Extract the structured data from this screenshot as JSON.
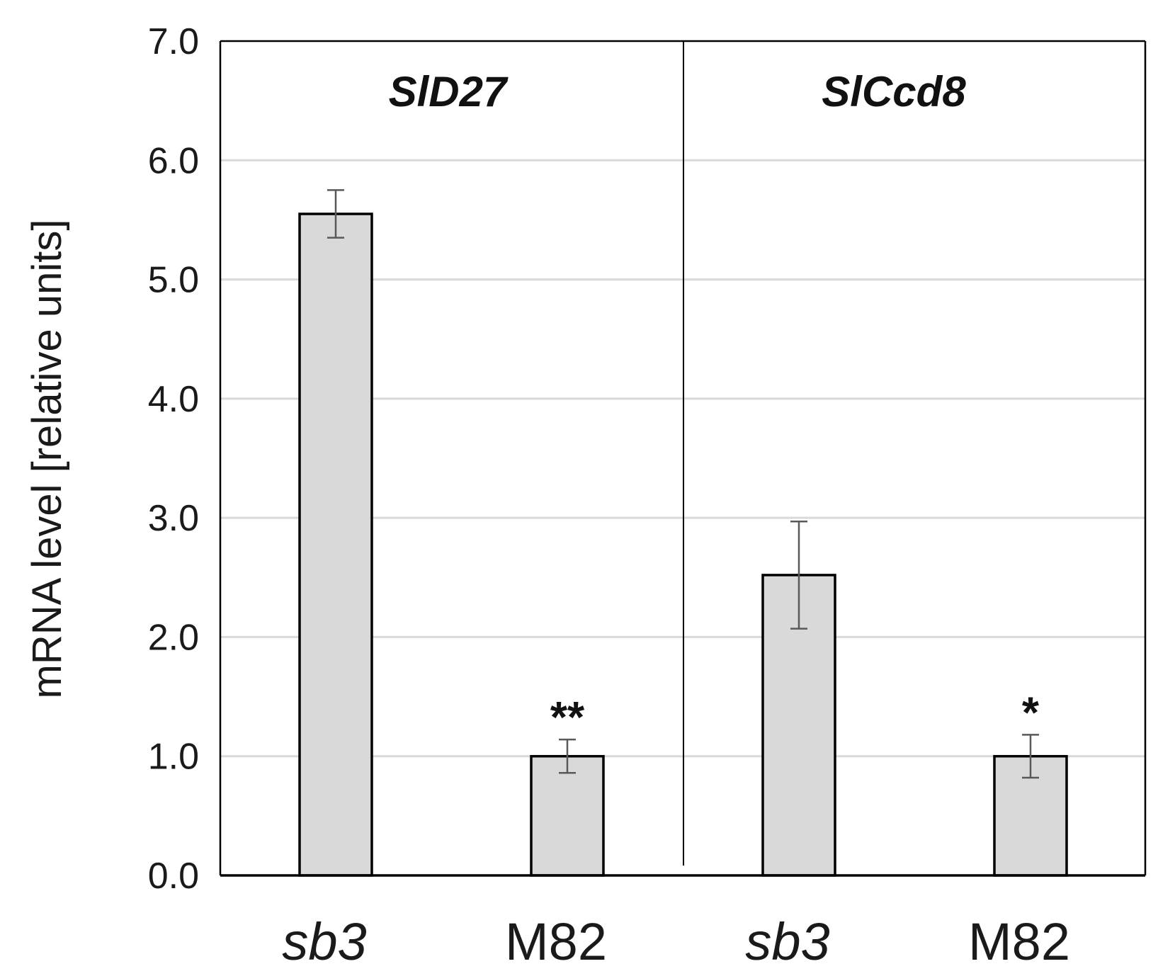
{
  "chart_data": {
    "type": "bar",
    "ylabel": "mRNA level [relative units]",
    "ylim": [
      0,
      7
    ],
    "yticks": [
      "0.0",
      "1.0",
      "2.0",
      "3.0",
      "4.0",
      "5.0",
      "6.0",
      "7.0"
    ],
    "grid": true,
    "panels": [
      {
        "title": "SlD27",
        "categories": [
          {
            "label": "sb3",
            "italic": true,
            "value": 5.55,
            "error": 0.2,
            "sig": ""
          },
          {
            "label": "M82",
            "italic": false,
            "value": 1.0,
            "error": 0.14,
            "sig": "**"
          }
        ]
      },
      {
        "title": "SlCcd8",
        "categories": [
          {
            "label": "sb3",
            "italic": true,
            "value": 2.52,
            "error": 0.45,
            "sig": ""
          },
          {
            "label": "M82",
            "italic": false,
            "value": 1.0,
            "error": 0.18,
            "sig": "*"
          }
        ]
      }
    ],
    "colors": {
      "bar_fill": "#d9d9d9",
      "bar_stroke": "#000000",
      "grid": "#d9d9d9",
      "error_bar": "#595959"
    }
  }
}
